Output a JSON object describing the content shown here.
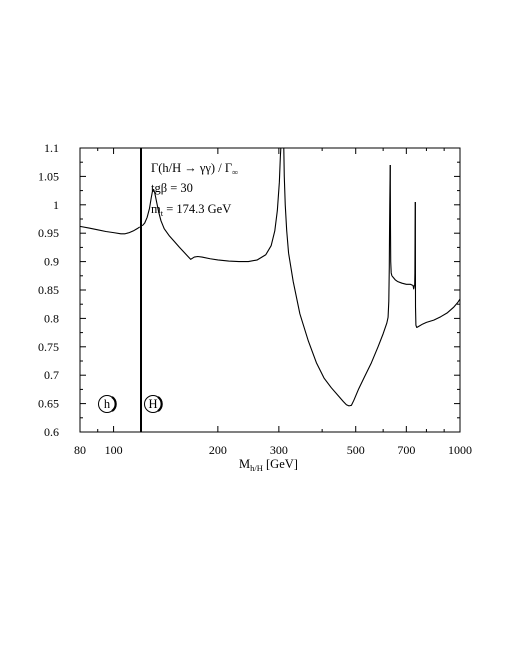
{
  "chart_data": {
    "type": "line",
    "x_scale": "log",
    "xlim": [
      80,
      1000
    ],
    "ylim": [
      0.6,
      1.1
    ],
    "grid": false,
    "legend": "none",
    "xlabel_main": "M",
    "xlabel_sub": "h/H",
    "xlabel_unit": "[GeV]",
    "x_ticks": [
      {
        "value": 80,
        "label": "80"
      },
      {
        "value": 100,
        "label": "100"
      },
      {
        "value": 200,
        "label": "200"
      },
      {
        "value": 300,
        "label": "300"
      },
      {
        "value": 500,
        "label": "500"
      },
      {
        "value": 700,
        "label": "700"
      },
      {
        "value": 1000,
        "label": "1000"
      }
    ],
    "y_ticks": [
      {
        "value": 0.6,
        "label": "0.6"
      },
      {
        "value": 0.65,
        "label": "0.65"
      },
      {
        "value": 0.7,
        "label": "0.7"
      },
      {
        "value": 0.75,
        "label": "0.75"
      },
      {
        "value": 0.8,
        "label": "0.8"
      },
      {
        "value": 0.85,
        "label": "0.85"
      },
      {
        "value": 0.9,
        "label": "0.9"
      },
      {
        "value": 0.95,
        "label": "0.95"
      },
      {
        "value": 1,
        "label": "1"
      },
      {
        "value": 1.05,
        "label": "1.05"
      },
      {
        "value": 1.1,
        "label": "1.1"
      }
    ],
    "annotations": {
      "line1": "Γ(h/H → γγ) / Γ",
      "line1_sub": "∞",
      "line2": "tgβ = 30",
      "line3_main": "m",
      "line3_sub": "t",
      "line3_rest": " = 174.3 GeV"
    },
    "region_labels": {
      "h": "h",
      "H": "H"
    },
    "separator_x": 120,
    "series": [
      {
        "segments": [
          [
            [
              80,
              0.962
            ],
            [
              85,
              0.959
            ],
            [
              90,
              0.956
            ],
            [
              95,
              0.953
            ],
            [
              100,
              0.951
            ],
            [
              105,
              0.949
            ],
            [
              108,
              0.949
            ],
            [
              111,
              0.951
            ],
            [
              114,
              0.954
            ],
            [
              117,
              0.958
            ],
            [
              119,
              0.961
            ]
          ],
          [
            [
              121,
              0.963
            ],
            [
              123,
              0.968
            ],
            [
              125,
              0.978
            ],
            [
              127,
              0.994
            ],
            [
              128.5,
              1.013
            ],
            [
              129.5,
              1.024
            ],
            [
              130.5,
              1.027
            ],
            [
              131.5,
              1.021
            ],
            [
              133,
              1.006
            ],
            [
              135,
              0.987
            ],
            [
              137,
              0.972
            ],
            [
              140,
              0.958
            ],
            [
              145,
              0.945
            ],
            [
              150,
              0.935
            ],
            [
              155,
              0.925
            ],
            [
              160,
              0.916
            ],
            [
              164,
              0.909
            ],
            [
              167,
              0.904
            ],
            [
              169,
              0.906
            ],
            [
              171,
              0.908
            ],
            [
              175,
              0.909
            ],
            [
              180,
              0.908
            ],
            [
              190,
              0.905
            ],
            [
              200,
              0.903
            ],
            [
              215,
              0.901
            ],
            [
              230,
              0.9
            ],
            [
              245,
              0.9
            ],
            [
              260,
              0.903
            ],
            [
              275,
              0.912
            ],
            [
              285,
              0.928
            ],
            [
              292,
              0.954
            ],
            [
              297,
              0.99
            ],
            [
              301,
              1.04
            ],
            [
              303,
              1.085
            ],
            [
              304,
              1.1
            ]
          ],
          [
            [
              310,
              1.1
            ],
            [
              311,
              1.05
            ],
            [
              313,
              1.0
            ],
            [
              316,
              0.955
            ],
            [
              320,
              0.915
            ],
            [
              330,
              0.865
            ],
            [
              345,
              0.808
            ],
            [
              365,
              0.76
            ],
            [
              385,
              0.722
            ],
            [
              405,
              0.695
            ],
            [
              425,
              0.678
            ],
            [
              445,
              0.664
            ],
            [
              460,
              0.654
            ],
            [
              470,
              0.648
            ],
            [
              478,
              0.646
            ],
            [
              486,
              0.647
            ],
            [
              494,
              0.656
            ],
            [
              510,
              0.676
            ],
            [
              530,
              0.697
            ],
            [
              555,
              0.722
            ],
            [
              580,
              0.75
            ],
            [
              600,
              0.773
            ],
            [
              615,
              0.792
            ],
            [
              620,
              0.802
            ],
            [
              623,
              0.83
            ],
            [
              625,
              0.89
            ],
            [
              626,
              0.95
            ],
            [
              627,
              1.0
            ],
            [
              628,
              1.04
            ],
            [
              629,
              1.07
            ]
          ],
          [
            [
              629,
              1.07
            ],
            [
              630,
              0.96
            ],
            [
              631,
              0.9
            ],
            [
              633,
              0.88
            ],
            [
              636,
              0.875
            ],
            [
              642,
              0.872
            ],
            [
              650,
              0.868
            ],
            [
              660,
              0.865
            ],
            [
              680,
              0.862
            ],
            [
              700,
              0.86
            ],
            [
              720,
              0.86
            ],
            [
              732,
              0.858
            ],
            [
              735,
              0.852
            ],
            [
              738,
              0.857
            ],
            [
              740,
              0.86
            ],
            [
              741,
              0.88
            ],
            [
              742,
              0.96
            ],
            [
              743,
              1.005
            ]
          ],
          [
            [
              743,
              1.005
            ],
            [
              744,
              0.82
            ],
            [
              746,
              0.788
            ],
            [
              750,
              0.784
            ],
            [
              760,
              0.786
            ],
            [
              780,
              0.79
            ],
            [
              800,
              0.793
            ],
            [
              840,
              0.797
            ],
            [
              880,
              0.803
            ],
            [
              920,
              0.81
            ],
            [
              960,
              0.82
            ],
            [
              985,
              0.828
            ],
            [
              1000,
              0.834
            ]
          ]
        ]
      }
    ]
  }
}
